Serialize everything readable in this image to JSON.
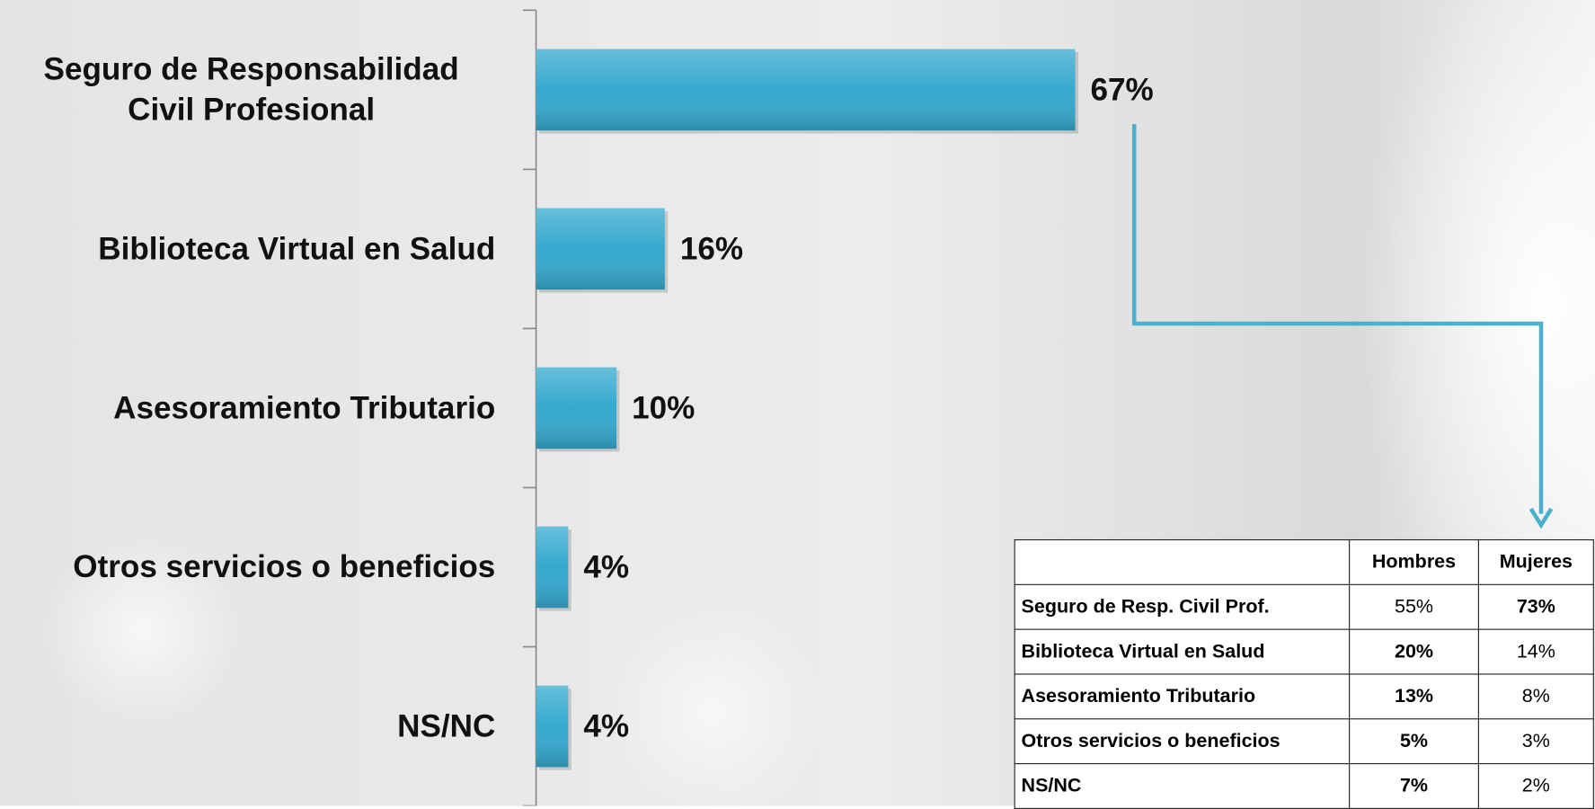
{
  "chart_data": {
    "type": "bar",
    "orientation": "horizontal",
    "categories": [
      "Seguro de Responsabilidad Civil Profesional",
      "Biblioteca Virtual en Salud",
      "Asesoramiento Tributario",
      "Otros servicios o beneficios",
      "NS/NC"
    ],
    "values": [
      67,
      16,
      10,
      4,
      4
    ],
    "value_labels": [
      "67%",
      "16%",
      "10%",
      "4%",
      "4%"
    ],
    "color": "#35a9cf",
    "xlim": [
      0,
      100
    ]
  },
  "table": {
    "header": [
      "Hombres",
      "Mujeres"
    ],
    "rows": [
      [
        "Seguro de Resp. Civil Prof.",
        "55%",
        "73%"
      ],
      [
        "Biblioteca Virtual en Salud",
        "20%",
        "14%"
      ],
      [
        "Asesoramiento Tributario",
        "13%",
        "8%"
      ],
      [
        "Otros servicios o beneficios",
        "5%",
        "3%"
      ],
      [
        "NS/NC",
        "7%",
        "2%"
      ]
    ]
  }
}
